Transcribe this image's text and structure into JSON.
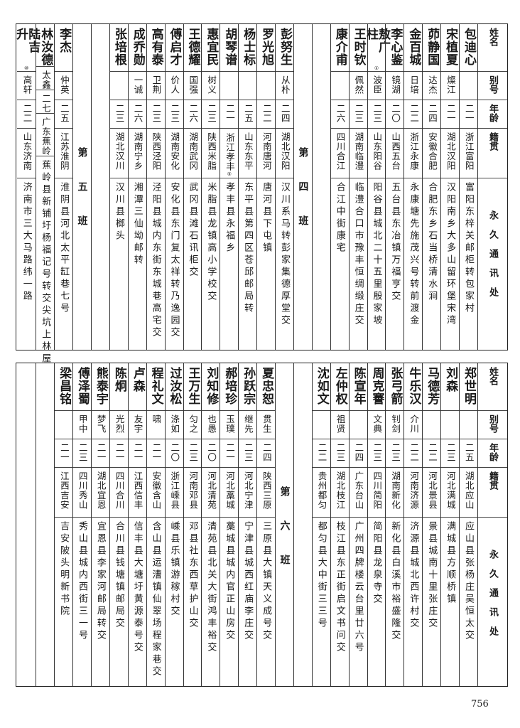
{
  "header": {
    "name": "姓名",
    "alias": "别号",
    "age": "年龄",
    "origin": "籍贯",
    "address": "永久通讯处"
  },
  "page_number": "756",
  "tables": [
    {
      "columns": [
        {
          "type": "person",
          "name": "包迪心",
          "alias": "",
          "age": "二一",
          "origin": "浙江富阳",
          "address": "富阳东梓关邮柜转包家村"
        },
        {
          "type": "person",
          "name": "宋植夏",
          "alias": "燦江",
          "age": "二一",
          "origin": "湖北汉阳",
          "address": "汉阳南乡大多山留环堡宋湾"
        },
        {
          "type": "person",
          "name": "茆静国",
          "alias": "达杰",
          "age": "二四",
          "origin": "安徽合肥",
          "address": "合肥东乡石当桥清水涧"
        },
        {
          "type": "person",
          "name": "金百城",
          "alias": "日培",
          "age": "二二",
          "origin": "浙江永康",
          "address": "永康塘先施茂兴号转前渡金"
        },
        {
          "type": "person",
          "name": "李心鉴",
          "alias": "镜湖",
          "age": "二〇",
          "origin": "山西五台",
          "address": "五台县东冶镇万福亨交"
        },
        {
          "type": "person",
          "name": "敖广柱",
          "note": "①",
          "alias": "波臣",
          "age": "二三",
          "origin": "山东阳谷",
          "address": "阳谷县城北二十五里殷家坡"
        },
        {
          "type": "person",
          "name": "王时钦",
          "alias": "佩然",
          "age": "二三",
          "origin": "湖南临澧",
          "address": "临澧合口市豫丰恒绸缎庄交"
        },
        {
          "type": "person",
          "name": "康介甫",
          "alias": "",
          "age": "二六",
          "origin": "四川合江",
          "address": "合江中街康宅"
        },
        {
          "type": "blank"
        },
        {
          "type": "class",
          "label": "第四班"
        },
        {
          "type": "person",
          "name": "彭努生",
          "alias": "从朴",
          "age": "二四",
          "origin": "湖北汉阳",
          "address": "汉川系马转彭家集德厚堂交"
        },
        {
          "type": "person",
          "name": "罗光旭",
          "alias": "",
          "age": "二二",
          "origin": "河南唐河",
          "address": "唐河县下屯镇"
        },
        {
          "type": "person",
          "name": "杨士标",
          "alias": "",
          "age": "二五",
          "origin": "山东东平",
          "address": "东平县第四区苍邱邮局转"
        },
        {
          "type": "person",
          "name": "胡琴谱",
          "alias": "",
          "age": "二一",
          "origin": "浙江孝丰",
          "origin_note": "⑤",
          "address": "孝丰县永福乡"
        },
        {
          "type": "person",
          "name": "惠宜民",
          "alias": "树义",
          "age": "二三",
          "origin": "陕西米脂",
          "address": "米脂县龙镇高小学校交"
        },
        {
          "type": "person",
          "name": "王德耀",
          "alias": "国强",
          "age": "二六",
          "origin": "湖南武冈",
          "address": "武冈县滩石讯柜交"
        },
        {
          "type": "person",
          "name": "傅启才",
          "alias": "价人",
          "age": "二三",
          "origin": "湖南安化",
          "address": "安化县东门复太祥转乃逸园交"
        },
        {
          "type": "person",
          "name": "高有泰",
          "alias": "卫荆",
          "age": "二三",
          "origin": "陕西泾阳",
          "address": "泾阳县城内东街东城巷高宅交"
        },
        {
          "type": "person",
          "name": "成乔勋",
          "alias": "一诚",
          "age": "二六",
          "origin": "湖南宁乡",
          "address": "湘潭三仙坳邮转"
        },
        {
          "type": "person",
          "name": "张培根",
          "alias": "",
          "age": "二三",
          "origin": "湖北汉川",
          "address": "汉川县榔头"
        },
        {
          "type": "blank"
        },
        {
          "type": "class",
          "label": "第五班"
        },
        {
          "type": "person",
          "name": "李杰",
          "alias": "仲英",
          "age": "二五",
          "origin": "江苏淮阴",
          "address": "淮阴县河北太平缸巷七号"
        },
        {
          "type": "person",
          "name": "林汝德",
          "alias": "太鑫",
          "age": "二七",
          "origin": "广东蕉岭",
          "address": "蕉岭县新铺圩杨福记号转交尖坑上林屋"
        },
        {
          "type": "person",
          "name": "陆吉升",
          "note": "⑩",
          "alias": "高轩",
          "age": "二二",
          "origin": "山东济南",
          "address": "济南市三大马路纬一路"
        }
      ]
    },
    {
      "columns": [
        {
          "type": "person",
          "name": "郑世明",
          "alias": "",
          "age": "二五",
          "origin": "湖北应山",
          "address": "应山县张杨庄吴恒太交"
        },
        {
          "type": "person",
          "name": "刘森",
          "alias": "",
          "age": "二三",
          "origin": "河北满城",
          "address": "满城县方顺桥镇"
        },
        {
          "type": "person",
          "name": "马德芳",
          "alias": "",
          "age": "二二",
          "origin": "河北景县",
          "address": "景县城南十里张庄交"
        },
        {
          "type": "person",
          "name": "牛乐汉",
          "alias": "介川",
          "age": "二二",
          "origin": "河南济源",
          "address": "济源县城北西许村交"
        },
        {
          "type": "person",
          "name": "张弓箭",
          "alias": "钊剑",
          "age": "二三",
          "origin": "湖南新化",
          "address": "新化县白溪市裕盛隆交"
        },
        {
          "type": "person",
          "name": "周克謇",
          "alias": "文典",
          "age": "二三",
          "origin": "四川简阳",
          "address": "简阳县龙泉寺交"
        },
        {
          "type": "person",
          "name": "陈宣年",
          "alias": "",
          "age": "二四",
          "origin": "广东台山",
          "address": "广州四牌楼云台里廿六号"
        },
        {
          "type": "person",
          "name": "左仲权",
          "alias": "祖贤",
          "age": "二三",
          "origin": "湖北枝江",
          "address": "枝江县东正街启文书问交"
        },
        {
          "type": "person",
          "name": "沈如文",
          "alias": "",
          "age": "二二",
          "origin": "贵州都匀",
          "address": "都匀县大中街三三号"
        },
        {
          "type": "blank"
        },
        {
          "type": "class",
          "label": "第六班"
        },
        {
          "type": "person",
          "name": "夏忠恕",
          "alias": "贯生",
          "age": "二四",
          "origin": "陕西三原",
          "address": "三原县大镇天义成号交"
        },
        {
          "type": "person",
          "name": "孙跃宗",
          "alias": "继先",
          "age": "二三",
          "origin": "河北宁津",
          "address": "宁津县城西红庙李庄交"
        },
        {
          "type": "person",
          "name": "郝培珍",
          "alias": "玉璞",
          "age": "二一",
          "origin": "河北藁城",
          "address": "藁城县城内官正山房交"
        },
        {
          "type": "person",
          "name": "刘知修",
          "alias": "也愚",
          "age": "二〇",
          "origin": "河北清苑",
          "address": "清苑县北关大街鸿丰裕交"
        },
        {
          "type": "person",
          "name": "王万生",
          "alias": "匀之",
          "age": "二三",
          "origin": "河南邓县",
          "address": "邓县社东西草护山交"
        },
        {
          "type": "person",
          "name": "过汝松",
          "alias": "涤如",
          "age": "二〇",
          "origin": "浙江嵊县",
          "address": "嵊县乐镇游稼村交"
        },
        {
          "type": "person",
          "name": "程礼文",
          "alias": "啸",
          "age": "二一",
          "origin": "安徽含山",
          "address": "含山县运漕镇仙翠场程家巷交"
        },
        {
          "type": "person",
          "name": "卢森",
          "alias": "友宇",
          "age": "二一",
          "origin": "江西信丰",
          "address": "信丰县大塘圩黄源泰号交"
        },
        {
          "type": "person",
          "name": "陈炯",
          "alias": "光烈",
          "age": "二一",
          "origin": "四川合川",
          "address": "合川县钱塘镇邮局交"
        },
        {
          "type": "person",
          "name": "熊泰宇",
          "alias": "梦飞",
          "age": "二一",
          "origin": "湖北宜恩",
          "address": "宜恩县李家河邮局转交"
        },
        {
          "type": "person",
          "name": "傅泽蜀",
          "alias": "甲中",
          "age": "二三",
          "origin": "四川秀山",
          "address": "秀山县城内西街三一号"
        },
        {
          "type": "person",
          "name": "梁昌铭",
          "alias": "",
          "age": "二一",
          "origin": "江西吉安",
          "address": "吉安陂头明新书院"
        },
        {
          "type": "blank"
        },
        {
          "type": "blank"
        }
      ]
    }
  ]
}
